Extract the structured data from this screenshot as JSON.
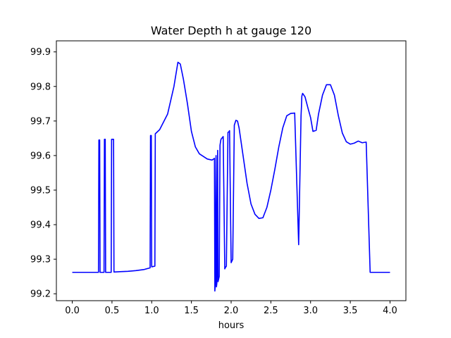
{
  "chart_data": {
    "type": "line",
    "title": "Water Depth h at gauge 120",
    "xlabel": "hours",
    "ylabel": "",
    "xlim": [
      -0.2,
      4.2
    ],
    "ylim": [
      99.18,
      99.932
    ],
    "xticks": [
      0.0,
      0.5,
      1.0,
      1.5,
      2.0,
      2.5,
      3.0,
      3.5,
      4.0
    ],
    "xtick_labels": [
      "0.0",
      "0.5",
      "1.0",
      "1.5",
      "2.0",
      "2.5",
      "3.0",
      "3.5",
      "4.0"
    ],
    "yticks": [
      99.2,
      99.3,
      99.4,
      99.5,
      99.6,
      99.7,
      99.8,
      99.9
    ],
    "ytick_labels": [
      "99.2",
      "99.3",
      "99.4",
      "99.5",
      "99.6",
      "99.7",
      "99.8",
      "99.9"
    ],
    "grid": false,
    "colors": {
      "line": "#0000ff",
      "frame": "#000000",
      "background": "#ffffff"
    },
    "series": [
      {
        "name": "",
        "x": [
          0.0,
          0.33,
          0.335,
          0.345,
          0.35,
          0.4,
          0.405,
          0.415,
          0.42,
          0.49,
          0.495,
          0.52,
          0.525,
          0.6,
          0.7,
          0.8,
          0.9,
          0.98,
          0.985,
          0.995,
          1.0,
          1.04,
          1.045,
          1.1,
          1.2,
          1.28,
          1.33,
          1.36,
          1.4,
          1.45,
          1.5,
          1.55,
          1.6,
          1.7,
          1.76,
          1.79,
          1.795,
          1.8,
          1.81,
          1.815,
          1.82,
          1.83,
          1.835,
          1.84,
          1.85,
          1.86,
          1.87,
          1.875,
          1.9,
          1.92,
          1.925,
          1.94,
          1.96,
          1.97,
          1.98,
          2.0,
          2.02,
          2.04,
          2.05,
          2.06,
          2.08,
          2.1,
          2.15,
          2.2,
          2.25,
          2.3,
          2.35,
          2.4,
          2.45,
          2.5,
          2.55,
          2.6,
          2.65,
          2.7,
          2.75,
          2.8,
          2.85,
          2.88,
          2.885,
          2.89,
          2.9,
          2.93,
          2.97,
          3.0,
          3.03,
          3.07,
          3.1,
          3.15,
          3.2,
          3.25,
          3.3,
          3.35,
          3.4,
          3.45,
          3.5,
          3.55,
          3.6,
          3.65,
          3.7,
          3.75,
          3.8,
          3.85,
          3.9,
          3.95,
          4.0
        ],
        "y": [
          99.262,
          99.262,
          99.645,
          99.645,
          99.262,
          99.262,
          99.647,
          99.647,
          99.262,
          99.262,
          99.647,
          99.647,
          99.263,
          99.264,
          99.265,
          99.267,
          99.27,
          99.275,
          99.658,
          99.658,
          99.278,
          99.28,
          99.663,
          99.675,
          99.72,
          99.8,
          99.87,
          99.865,
          99.82,
          99.75,
          99.67,
          99.625,
          99.605,
          99.59,
          99.587,
          99.592,
          99.208,
          99.225,
          99.6,
          99.22,
          99.23,
          99.615,
          99.235,
          99.24,
          99.25,
          99.63,
          99.645,
          99.648,
          99.655,
          99.272,
          99.275,
          99.28,
          99.667,
          99.668,
          99.672,
          99.29,
          99.3,
          99.688,
          99.695,
          99.702,
          99.7,
          99.68,
          99.6,
          99.52,
          99.46,
          99.43,
          99.418,
          99.42,
          99.45,
          99.5,
          99.56,
          99.625,
          99.68,
          99.715,
          99.722,
          99.723,
          99.342,
          99.715,
          99.74,
          99.772,
          99.78,
          99.77,
          99.735,
          99.71,
          99.67,
          99.673,
          99.72,
          99.775,
          99.805,
          99.805,
          99.775,
          99.715,
          99.665,
          99.64,
          99.633,
          99.636,
          99.642,
          99.637,
          99.639,
          99.262,
          99.262,
          99.262,
          99.262,
          99.262,
          99.262
        ]
      }
    ]
  }
}
